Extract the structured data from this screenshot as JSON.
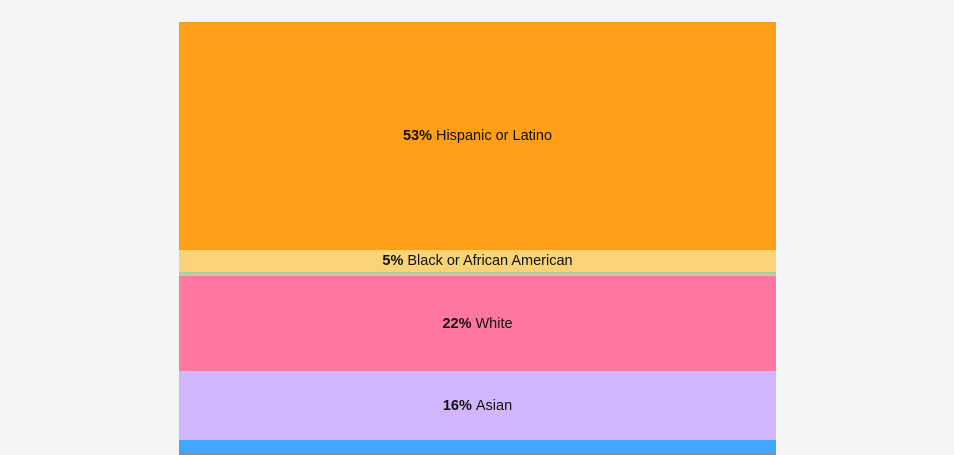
{
  "chart_data": {
    "type": "stacked-bar",
    "unit": "%",
    "segments": [
      {
        "pct": "53%",
        "label": "Hispanic or Latino",
        "value": 53,
        "color": "#ff9f17"
      },
      {
        "pct": "5%",
        "label": "Black or African American",
        "value": 5,
        "color": "#f8d377"
      },
      {
        "value": 0.4,
        "color": "#a9cfa4"
      },
      {
        "value": 0.4,
        "color": "#d9c1a8"
      },
      {
        "pct": "22%",
        "label": "White",
        "value": 22,
        "color": "#ff78a1"
      },
      {
        "pct": "16%",
        "label": "Asian",
        "value": 16,
        "color": "#cfb6fd"
      },
      {
        "value": 3,
        "color": "#40a9ff"
      },
      {
        "value": 0.5,
        "color": "#8c8c8c"
      }
    ]
  }
}
